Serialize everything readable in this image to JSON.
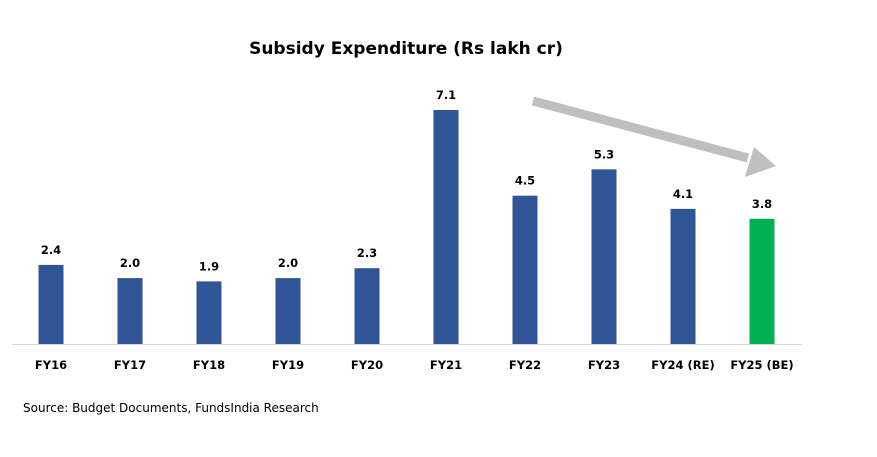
{
  "chart_data": {
    "type": "bar",
    "title": "Subsidy Expenditure (Rs lakh cr)",
    "xlabel": "",
    "ylabel": "",
    "categories": [
      "FY16",
      "FY17",
      "FY18",
      "FY19",
      "FY20",
      "FY21",
      "FY22",
      "FY23",
      "FY24 (RE)",
      "FY25 (BE)"
    ],
    "values": [
      2.4,
      2.0,
      1.9,
      2.0,
      2.3,
      7.1,
      4.5,
      5.3,
      4.1,
      3.8
    ],
    "value_labels": [
      "2.4",
      "2.0",
      "1.9",
      "2.0",
      "2.3",
      "7.1",
      "4.5",
      "5.3",
      "4.1",
      "3.8"
    ],
    "ylim": [
      0,
      7.1
    ],
    "grid": false,
    "legend": "none",
    "colors": {
      "default": "#2F5597",
      "highlight": "#00B050",
      "trend_arrow": "#BFBFBF",
      "axis": "#D9D9D9"
    },
    "highlight_index": 9,
    "annotations": [
      {
        "type": "trend-arrow",
        "direction": "down",
        "from_category": "FY22",
        "to_category": "FY25 (BE)"
      }
    ]
  },
  "source": "Source: Budget Documents, FundsIndia Research"
}
